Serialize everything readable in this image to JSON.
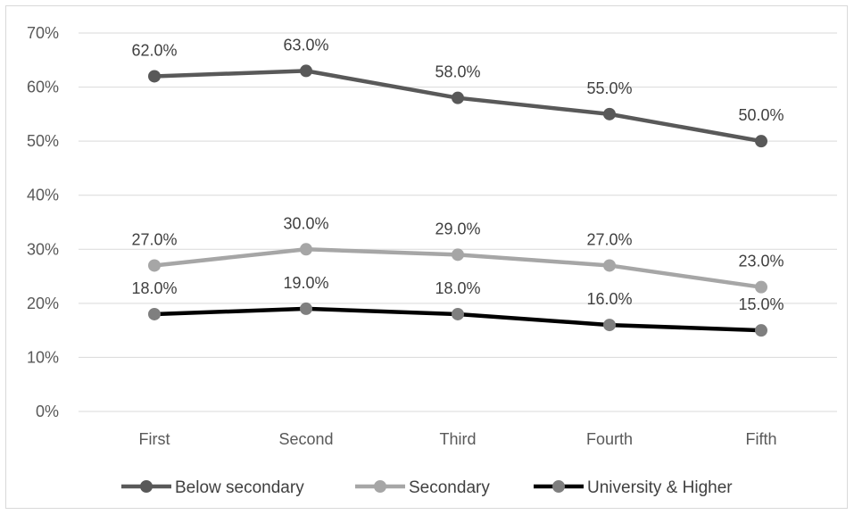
{
  "chart_data": {
    "type": "line",
    "categories": [
      "First",
      "Second",
      "Third",
      "Fourth",
      "Fifth"
    ],
    "ylim": [
      0,
      70
    ],
    "yticks": [
      "0%",
      "10%",
      "20%",
      "30%",
      "40%",
      "50%",
      "60%",
      "70%"
    ],
    "grid": true,
    "legend_position": "bottom",
    "series": [
      {
        "name": "Below secondary",
        "values": [
          62,
          63,
          58,
          55,
          50
        ],
        "labels": [
          "62.0%",
          "63.0%",
          "58.0%",
          "55.0%",
          "50.0%"
        ],
        "line_color": "#595959",
        "marker_color": "#595959"
      },
      {
        "name": "Secondary",
        "values": [
          27,
          30,
          29,
          27,
          23
        ],
        "labels": [
          "27.0%",
          "30.0%",
          "29.0%",
          "27.0%",
          "23.0%"
        ],
        "line_color": "#a6a6a6",
        "marker_color": "#a6a6a6"
      },
      {
        "name": "University & Higher",
        "values": [
          18,
          19,
          18,
          16,
          15
        ],
        "labels": [
          "18.0%",
          "19.0%",
          "18.0%",
          "16.0%",
          "15.0%"
        ],
        "line_color": "#000000",
        "marker_color": "#7f7f7f"
      }
    ]
  }
}
